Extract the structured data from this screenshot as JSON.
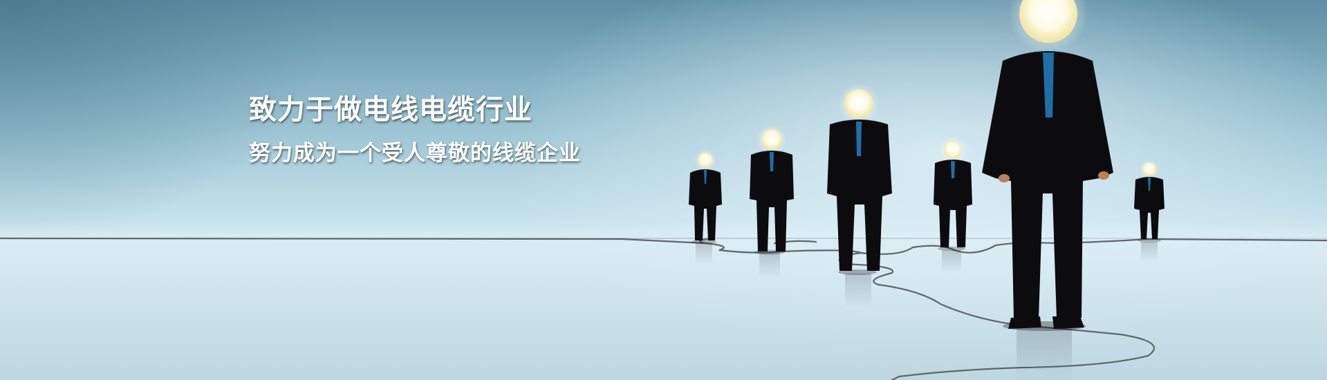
{
  "banner": {
    "headline": "致力于做电线电缆行业",
    "subline": "努力成为一个受人尊敬的线缆企业"
  },
  "colors": {
    "text": "#ffffff",
    "suit": "#0c0c0e",
    "tie": "#1e6fa8",
    "bulb": "#fffdf0",
    "cable": "#5f6669"
  }
}
